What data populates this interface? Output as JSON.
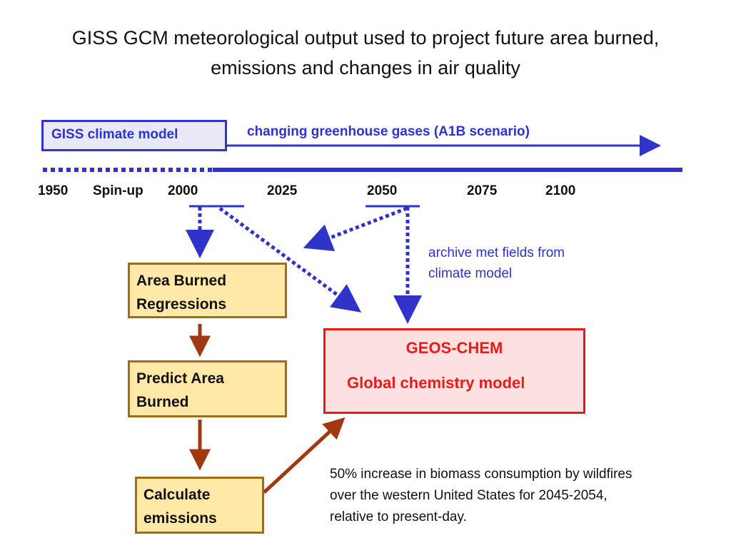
{
  "title": {
    "line1": "GISS GCM meteorological output used to project future area burned,",
    "line2": "emissions and changes in air quality"
  },
  "timeline": {
    "model_label": "GISS climate model",
    "scenario_label": "changing greenhouse gases (A1B scenario)",
    "years": [
      "1950",
      "Spin-up",
      "2000",
      "2025",
      "2050",
      "2075",
      "2100"
    ]
  },
  "archive": {
    "line1": "archive met fields from",
    "line2": "climate model"
  },
  "boxes": {
    "area_burned": {
      "line1": "Area Burned",
      "line2": "Regressions"
    },
    "predict": {
      "line1": "Predict Area",
      "line2": "Burned"
    },
    "emissions": {
      "line1": "Calculate",
      "line2": "emissions"
    }
  },
  "geos": {
    "title": "GEOS-CHEM",
    "subtitle": "Global chemistry model"
  },
  "note": {
    "line1": "50% increase in biomass consumption by wildfires",
    "line2": "over the western United States for 2045-2054,",
    "line3": "relative to present-day."
  },
  "colors": {
    "blue": "#2f33c8",
    "brown": "#a0390f",
    "red": "#e81a1a",
    "box_fill": "#ffe8a8",
    "box_border": "#a06d17"
  }
}
